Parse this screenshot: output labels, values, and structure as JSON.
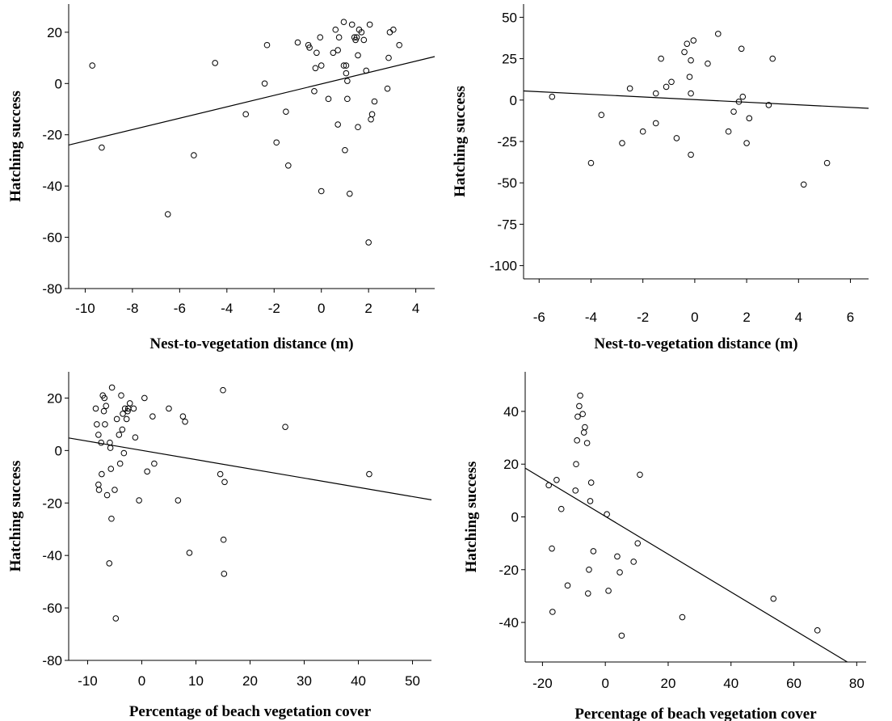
{
  "chart_data": [
    {
      "type": "scatter",
      "title": "",
      "xlabel": "Nest-to-vegetation distance (m)",
      "ylabel": "Hatching success",
      "xlim": [
        -10.7,
        4.8
      ],
      "ylim": [
        -80,
        31
      ],
      "xticks": [
        -10,
        -8,
        -6,
        -4,
        -2,
        0,
        2,
        4
      ],
      "yticks": [
        -80,
        -60,
        -40,
        -20,
        0,
        20
      ],
      "grid": false,
      "points": [
        {
          "x": -9.7,
          "y": 7
        },
        {
          "x": -9.3,
          "y": -25
        },
        {
          "x": -6.5,
          "y": -51
        },
        {
          "x": -5.4,
          "y": -28
        },
        {
          "x": -4.5,
          "y": 8
        },
        {
          "x": -3.2,
          "y": -12
        },
        {
          "x": -2.4,
          "y": 0
        },
        {
          "x": -2.3,
          "y": 15
        },
        {
          "x": -1.9,
          "y": -23
        },
        {
          "x": -1.5,
          "y": -11
        },
        {
          "x": -1.4,
          "y": -32
        },
        {
          "x": -1.0,
          "y": 16
        },
        {
          "x": -0.55,
          "y": 15
        },
        {
          "x": -0.5,
          "y": 14
        },
        {
          "x": -0.3,
          "y": -3
        },
        {
          "x": -0.25,
          "y": 6
        },
        {
          "x": -0.2,
          "y": 12
        },
        {
          "x": -0.05,
          "y": 18
        },
        {
          "x": 0.0,
          "y": 7
        },
        {
          "x": 0.0,
          "y": -42
        },
        {
          "x": 0.3,
          "y": -6
        },
        {
          "x": 0.5,
          "y": 12
        },
        {
          "x": 0.6,
          "y": 21
        },
        {
          "x": 0.7,
          "y": -16
        },
        {
          "x": 0.7,
          "y": 13
        },
        {
          "x": 0.75,
          "y": 18
        },
        {
          "x": 0.95,
          "y": 24
        },
        {
          "x": 0.95,
          "y": 7
        },
        {
          "x": 1.0,
          "y": -26
        },
        {
          "x": 1.05,
          "y": 7
        },
        {
          "x": 1.05,
          "y": 4
        },
        {
          "x": 1.1,
          "y": -6
        },
        {
          "x": 1.1,
          "y": 1
        },
        {
          "x": 1.2,
          "y": -43
        },
        {
          "x": 1.3,
          "y": 23
        },
        {
          "x": 1.4,
          "y": 18
        },
        {
          "x": 1.45,
          "y": 17
        },
        {
          "x": 1.5,
          "y": 18
        },
        {
          "x": 1.55,
          "y": 11
        },
        {
          "x": 1.55,
          "y": -17
        },
        {
          "x": 1.6,
          "y": 21
        },
        {
          "x": 1.7,
          "y": 20
        },
        {
          "x": 1.8,
          "y": 17
        },
        {
          "x": 1.9,
          "y": 5
        },
        {
          "x": 2.0,
          "y": -62
        },
        {
          "x": 2.05,
          "y": 23
        },
        {
          "x": 2.1,
          "y": -14
        },
        {
          "x": 2.15,
          "y": -12
        },
        {
          "x": 2.25,
          "y": -7
        },
        {
          "x": 2.8,
          "y": -2
        },
        {
          "x": 2.85,
          "y": 10
        },
        {
          "x": 2.9,
          "y": 20
        },
        {
          "x": 3.05,
          "y": 21
        },
        {
          "x": 3.3,
          "y": 15
        }
      ],
      "fit_line": {
        "x": [
          -10.7,
          4.8
        ],
        "y": [
          -24,
          10.5
        ]
      }
    },
    {
      "type": "scatter",
      "title": "",
      "xlabel": "Nest-to-vegetation distance (m)",
      "ylabel": "Hatching success",
      "xlim": [
        -6.6,
        6.7
      ],
      "ylim": [
        -108,
        58
      ],
      "xticks": [
        -6,
        -4,
        -2,
        0,
        2,
        4,
        6
      ],
      "yticks": [
        -100,
        -75,
        -50,
        -25,
        0,
        25,
        50
      ],
      "grid": false,
      "points": [
        {
          "x": -5.5,
          "y": 2
        },
        {
          "x": -4.0,
          "y": -38
        },
        {
          "x": -3.6,
          "y": -9
        },
        {
          "x": -2.8,
          "y": -26
        },
        {
          "x": -2.5,
          "y": 7
        },
        {
          "x": -2.0,
          "y": -19
        },
        {
          "x": -1.5,
          "y": -14
        },
        {
          "x": -1.5,
          "y": 4
        },
        {
          "x": -1.3,
          "y": 25
        },
        {
          "x": -1.1,
          "y": 8
        },
        {
          "x": -0.9,
          "y": 11
        },
        {
          "x": -0.7,
          "y": -23
        },
        {
          "x": -0.4,
          "y": 29
        },
        {
          "x": -0.3,
          "y": 34
        },
        {
          "x": -0.2,
          "y": 14
        },
        {
          "x": -0.15,
          "y": 24
        },
        {
          "x": -0.15,
          "y": 4
        },
        {
          "x": -0.15,
          "y": -33
        },
        {
          "x": -0.05,
          "y": 36
        },
        {
          "x": 0.5,
          "y": 22
        },
        {
          "x": 0.9,
          "y": 40
        },
        {
          "x": 1.3,
          "y": -19
        },
        {
          "x": 1.5,
          "y": -7
        },
        {
          "x": 1.7,
          "y": -1
        },
        {
          "x": 1.8,
          "y": 31
        },
        {
          "x": 1.85,
          "y": 2
        },
        {
          "x": 2.0,
          "y": -26
        },
        {
          "x": 2.1,
          "y": -11
        },
        {
          "x": 2.85,
          "y": -3
        },
        {
          "x": 3.0,
          "y": 25
        },
        {
          "x": 4.2,
          "y": -51
        },
        {
          "x": 5.1,
          "y": -38
        }
      ],
      "fit_line": {
        "x": [
          -6.6,
          6.7
        ],
        "y": [
          5.5,
          -5
        ]
      }
    },
    {
      "type": "scatter",
      "title": "",
      "xlabel": "Percentage of beach vegetation cover",
      "ylabel": "Hatching success",
      "xlim": [
        -13.5,
        53.5
      ],
      "ylim": [
        -80,
        30
      ],
      "xticks": [
        -10,
        0,
        10,
        20,
        30,
        40,
        50
      ],
      "yticks": [
        -80,
        -60,
        -40,
        -20,
        0,
        20
      ],
      "grid": false,
      "points": [
        {
          "x": -8.5,
          "y": 16
        },
        {
          "x": -8.3,
          "y": 10
        },
        {
          "x": -8.0,
          "y": 6
        },
        {
          "x": -8.0,
          "y": -13
        },
        {
          "x": -7.9,
          "y": -15
        },
        {
          "x": -7.5,
          "y": 3
        },
        {
          "x": -7.4,
          "y": -9
        },
        {
          "x": -7.2,
          "y": 21
        },
        {
          "x": -7.0,
          "y": 15
        },
        {
          "x": -6.9,
          "y": 20
        },
        {
          "x": -6.8,
          "y": 10
        },
        {
          "x": -6.6,
          "y": 17
        },
        {
          "x": -6.4,
          "y": -17
        },
        {
          "x": -6.0,
          "y": -43
        },
        {
          "x": -5.9,
          "y": 3
        },
        {
          "x": -5.8,
          "y": 1
        },
        {
          "x": -5.7,
          "y": -7
        },
        {
          "x": -5.6,
          "y": -26
        },
        {
          "x": -5.5,
          "y": 24
        },
        {
          "x": -5.0,
          "y": -15
        },
        {
          "x": -4.8,
          "y": -64
        },
        {
          "x": -4.6,
          "y": 12
        },
        {
          "x": -4.2,
          "y": 6
        },
        {
          "x": -4.0,
          "y": -5
        },
        {
          "x": -3.8,
          "y": 21
        },
        {
          "x": -3.6,
          "y": 8
        },
        {
          "x": -3.5,
          "y": 14
        },
        {
          "x": -3.3,
          "y": -1
        },
        {
          "x": -3.1,
          "y": 16
        },
        {
          "x": -2.8,
          "y": 12
        },
        {
          "x": -2.6,
          "y": 15
        },
        {
          "x": -2.5,
          "y": 16
        },
        {
          "x": -2.2,
          "y": 18
        },
        {
          "x": -1.5,
          "y": 16
        },
        {
          "x": -1.2,
          "y": 5
        },
        {
          "x": -0.5,
          "y": -19
        },
        {
          "x": 0.5,
          "y": 20
        },
        {
          "x": 1.0,
          "y": -8
        },
        {
          "x": 2.0,
          "y": 13
        },
        {
          "x": 2.3,
          "y": -5
        },
        {
          "x": 5.0,
          "y": 16
        },
        {
          "x": 6.7,
          "y": -19
        },
        {
          "x": 7.6,
          "y": 13
        },
        {
          "x": 8.0,
          "y": 11
        },
        {
          "x": 8.8,
          "y": -39
        },
        {
          "x": 14.5,
          "y": -9
        },
        {
          "x": 15.0,
          "y": 23
        },
        {
          "x": 15.1,
          "y": -34
        },
        {
          "x": 15.2,
          "y": -47
        },
        {
          "x": 15.3,
          "y": -12
        },
        {
          "x": 26.5,
          "y": 9
        },
        {
          "x": 42.0,
          "y": -9
        }
      ],
      "fit_line": {
        "x": [
          -13.5,
          53.5
        ],
        "y": [
          4.8,
          -18.8
        ]
      }
    },
    {
      "type": "scatter",
      "title": "",
      "xlabel": "Percentage of beach vegetation cover",
      "ylabel": "Hatching success",
      "xlim": [
        -25.5,
        83
      ],
      "ylim": [
        -55,
        55
      ],
      "xticks": [
        -20,
        0,
        20,
        40,
        60,
        80
      ],
      "yticks": [
        -40,
        -20,
        0,
        20,
        40
      ],
      "grid": false,
      "points": [
        {
          "x": -18.0,
          "y": 12
        },
        {
          "x": -17.0,
          "y": -12
        },
        {
          "x": -16.8,
          "y": -36
        },
        {
          "x": -15.5,
          "y": 14
        },
        {
          "x": -14.0,
          "y": 3
        },
        {
          "x": -12.0,
          "y": -26
        },
        {
          "x": -9.5,
          "y": 10
        },
        {
          "x": -9.3,
          "y": 20
        },
        {
          "x": -9.0,
          "y": 29
        },
        {
          "x": -8.8,
          "y": 38
        },
        {
          "x": -8.3,
          "y": 42
        },
        {
          "x": -8.0,
          "y": 46
        },
        {
          "x": -7.2,
          "y": 39
        },
        {
          "x": -6.8,
          "y": 32
        },
        {
          "x": -6.5,
          "y": 34
        },
        {
          "x": -5.8,
          "y": 28
        },
        {
          "x": -5.5,
          "y": -29
        },
        {
          "x": -5.2,
          "y": -20
        },
        {
          "x": -4.8,
          "y": 6
        },
        {
          "x": -4.5,
          "y": 13
        },
        {
          "x": -3.8,
          "y": -13
        },
        {
          "x": 0.5,
          "y": 1
        },
        {
          "x": 1.0,
          "y": -28
        },
        {
          "x": 3.8,
          "y": -15
        },
        {
          "x": 4.6,
          "y": -21
        },
        {
          "x": 5.2,
          "y": -45
        },
        {
          "x": 9.0,
          "y": -17
        },
        {
          "x": 10.3,
          "y": -10
        },
        {
          "x": 11.0,
          "y": 16
        },
        {
          "x": 24.5,
          "y": -38
        },
        {
          "x": 53.5,
          "y": -31
        },
        {
          "x": 67.5,
          "y": -43
        }
      ],
      "fit_line": {
        "x": [
          -25.5,
          77
        ],
        "y": [
          18.5,
          -55
        ]
      }
    }
  ]
}
